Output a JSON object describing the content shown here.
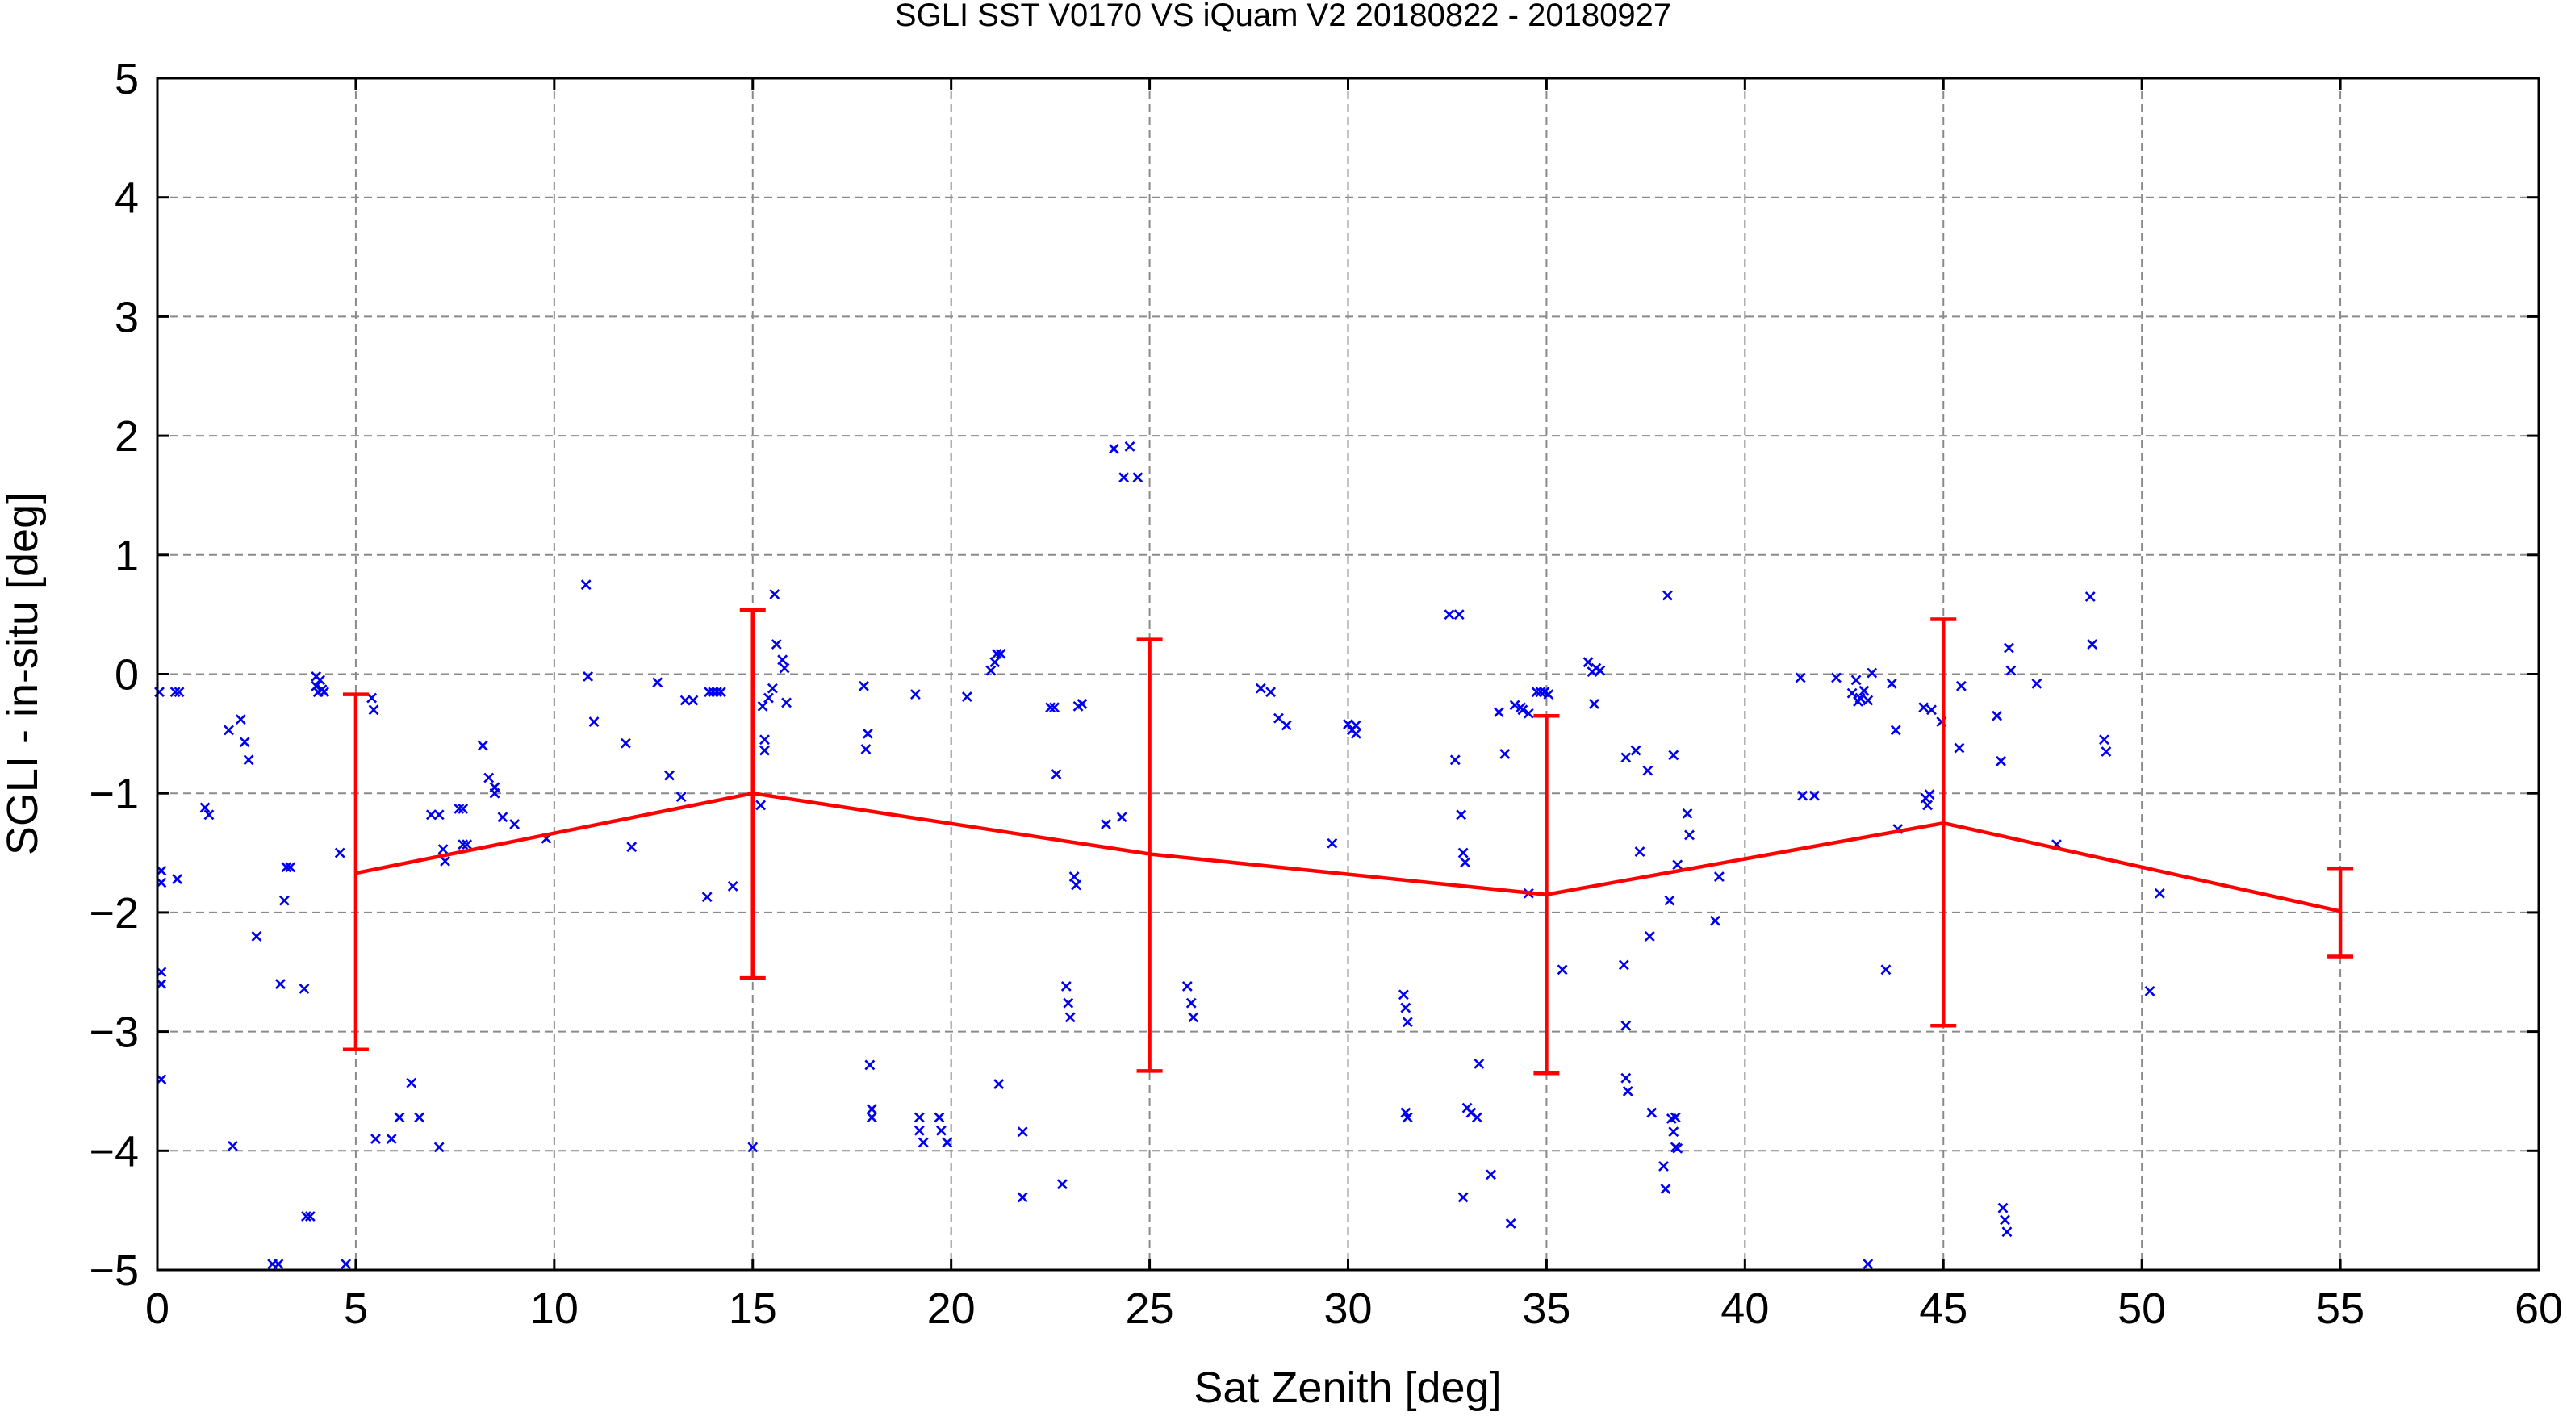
{
  "chart_data": {
    "type": "scatter",
    "title": "SGLI SST V0170 VS iQuam V2 20180822 - 20180927",
    "xlabel": "Sat Zenith [deg]",
    "ylabel": "SGLI - in-situ [deg]",
    "xlim": [
      0,
      60
    ],
    "ylim": [
      -5,
      5
    ],
    "x_ticks": [
      "0",
      "5",
      "10",
      "15",
      "20",
      "25",
      "30",
      "35",
      "40",
      "45",
      "50",
      "55",
      "60"
    ],
    "y_ticks": [
      "5",
      "4",
      "3",
      "2",
      "1",
      "0",
      "-1",
      "-2",
      "-3",
      "-4",
      "-5"
    ],
    "grid": true,
    "colors": {
      "points": "#0000ee",
      "mean": "#ff0000",
      "grid": "#8a8a8a"
    },
    "series": [
      {
        "kind": "points",
        "marker": "x",
        "points": [
          [
            0.05,
            -0.15
          ],
          [
            0.1,
            -1.65
          ],
          [
            0.1,
            -1.75
          ],
          [
            0.1,
            -2.5
          ],
          [
            0.1,
            -2.6
          ],
          [
            0.1,
            -3.4
          ],
          [
            0.45,
            -0.15
          ],
          [
            0.5,
            -1.72
          ],
          [
            0.55,
            -0.15
          ],
          [
            1.2,
            -1.12
          ],
          [
            1.3,
            -1.18
          ],
          [
            1.8,
            -0.47
          ],
          [
            1.9,
            -3.96
          ],
          [
            2.1,
            -0.38
          ],
          [
            2.2,
            -0.57
          ],
          [
            2.3,
            -0.72
          ],
          [
            2.5,
            -2.2
          ],
          [
            2.9,
            -4.95
          ],
          [
            3.05,
            -4.95
          ],
          [
            3.1,
            -2.6
          ],
          [
            3.2,
            -1.9
          ],
          [
            3.25,
            -1.62
          ],
          [
            3.35,
            -1.62
          ],
          [
            3.7,
            -2.64
          ],
          [
            3.75,
            -4.55
          ],
          [
            3.85,
            -4.55
          ],
          [
            4.0,
            -0.02
          ],
          [
            4.0,
            -0.1
          ],
          [
            4.05,
            -0.15
          ],
          [
            4.1,
            -0.05
          ],
          [
            4.15,
            -0.13
          ],
          [
            4.2,
            -0.15
          ],
          [
            4.6,
            -1.5
          ],
          [
            4.75,
            -4.95
          ],
          [
            5.4,
            -0.2
          ],
          [
            5.45,
            -0.3
          ],
          [
            5.5,
            -3.9
          ],
          [
            5.9,
            -3.9
          ],
          [
            6.1,
            -3.72
          ],
          [
            6.4,
            -3.43
          ],
          [
            6.6,
            -3.72
          ],
          [
            6.9,
            -1.18
          ],
          [
            7.1,
            -1.18
          ],
          [
            7.2,
            -1.47
          ],
          [
            7.25,
            -1.57
          ],
          [
            7.1,
            -3.97
          ],
          [
            7.6,
            -1.13
          ],
          [
            7.7,
            -1.13
          ],
          [
            7.7,
            -1.43
          ],
          [
            7.8,
            -1.43
          ],
          [
            8.2,
            -0.6
          ],
          [
            8.35,
            -0.87
          ],
          [
            8.5,
            -1.0
          ],
          [
            8.5,
            -0.95
          ],
          [
            8.7,
            -1.2
          ],
          [
            9.0,
            -1.26
          ],
          [
            9.8,
            -1.38
          ],
          [
            10.8,
            0.75
          ],
          [
            10.85,
            -0.02
          ],
          [
            11.0,
            -0.4
          ],
          [
            11.8,
            -0.58
          ],
          [
            11.95,
            -1.45
          ],
          [
            12.6,
            -0.07
          ],
          [
            12.9,
            -0.85
          ],
          [
            13.2,
            -1.03
          ],
          [
            13.3,
            -0.22
          ],
          [
            13.5,
            -0.22
          ],
          [
            13.85,
            -1.87
          ],
          [
            13.9,
            -0.15
          ],
          [
            14.0,
            -0.15
          ],
          [
            14.1,
            -0.15
          ],
          [
            14.2,
            -0.15
          ],
          [
            14.5,
            -1.78
          ],
          [
            15.0,
            -3.97
          ],
          [
            15.2,
            -1.1
          ],
          [
            15.25,
            -0.27
          ],
          [
            15.3,
            -0.55
          ],
          [
            15.3,
            -0.64
          ],
          [
            15.4,
            -0.2
          ],
          [
            15.5,
            -0.12
          ],
          [
            15.55,
            0.67
          ],
          [
            15.6,
            0.25
          ],
          [
            15.75,
            0.12
          ],
          [
            15.8,
            0.05
          ],
          [
            15.85,
            -0.24
          ],
          [
            17.8,
            -0.1
          ],
          [
            17.85,
            -0.63
          ],
          [
            17.9,
            -0.5
          ],
          [
            17.95,
            -3.28
          ],
          [
            18.0,
            -3.65
          ],
          [
            18.0,
            -3.72
          ],
          [
            19.1,
            -0.17
          ],
          [
            19.2,
            -3.72
          ],
          [
            19.2,
            -3.83
          ],
          [
            19.3,
            -3.93
          ],
          [
            19.7,
            -3.72
          ],
          [
            19.75,
            -3.83
          ],
          [
            19.9,
            -3.93
          ],
          [
            20.4,
            -0.19
          ],
          [
            21.0,
            0.03
          ],
          [
            21.1,
            0.1
          ],
          [
            21.15,
            0.17
          ],
          [
            21.25,
            0.17
          ],
          [
            21.2,
            -3.44
          ],
          [
            21.8,
            -3.84
          ],
          [
            21.8,
            -4.39
          ],
          [
            22.5,
            -0.28
          ],
          [
            22.6,
            -0.28
          ],
          [
            22.65,
            -0.84
          ],
          [
            22.8,
            -4.28
          ],
          [
            22.9,
            -2.62
          ],
          [
            22.95,
            -2.76
          ],
          [
            23.0,
            -2.88
          ],
          [
            23.1,
            -1.7
          ],
          [
            23.15,
            -1.77
          ],
          [
            23.2,
            -0.27
          ],
          [
            23.3,
            -0.25
          ],
          [
            23.9,
            -1.26
          ],
          [
            24.1,
            1.89
          ],
          [
            24.3,
            -1.2
          ],
          [
            24.35,
            1.65
          ],
          [
            24.5,
            1.91
          ],
          [
            24.7,
            1.65
          ],
          [
            25.95,
            -2.62
          ],
          [
            26.05,
            -2.76
          ],
          [
            26.1,
            -2.88
          ],
          [
            27.8,
            -0.12
          ],
          [
            28.05,
            -0.15
          ],
          [
            28.25,
            -0.37
          ],
          [
            28.45,
            -0.43
          ],
          [
            29.6,
            -1.42
          ],
          [
            30.0,
            -0.42
          ],
          [
            30.1,
            -0.47
          ],
          [
            30.2,
            -0.43
          ],
          [
            30.2,
            -0.5
          ],
          [
            31.4,
            -2.69
          ],
          [
            31.45,
            -2.8
          ],
          [
            31.5,
            -2.92
          ],
          [
            31.45,
            -3.68
          ],
          [
            31.5,
            -3.72
          ],
          [
            32.55,
            0.5
          ],
          [
            32.8,
            0.5
          ],
          [
            32.7,
            -0.72
          ],
          [
            32.85,
            -1.18
          ],
          [
            32.9,
            -1.5
          ],
          [
            32.95,
            -1.58
          ],
          [
            32.9,
            -4.39
          ],
          [
            33.0,
            -3.64
          ],
          [
            33.1,
            -3.68
          ],
          [
            33.25,
            -3.72
          ],
          [
            33.3,
            -3.27
          ],
          [
            33.6,
            -4.2
          ],
          [
            33.8,
            -0.32
          ],
          [
            33.95,
            -0.67
          ],
          [
            34.1,
            -4.61
          ],
          [
            34.2,
            -0.26
          ],
          [
            34.35,
            -0.28
          ],
          [
            34.4,
            -0.3
          ],
          [
            34.55,
            -0.33
          ],
          [
            34.55,
            -1.84
          ],
          [
            34.75,
            -0.15
          ],
          [
            34.85,
            -0.15
          ],
          [
            34.95,
            -0.15
          ],
          [
            35.05,
            -0.17
          ],
          [
            35.4,
            -2.48
          ],
          [
            36.05,
            0.1
          ],
          [
            36.15,
            0.02
          ],
          [
            36.2,
            -0.25
          ],
          [
            36.25,
            0.05
          ],
          [
            36.35,
            0.03
          ],
          [
            36.95,
            -2.44
          ],
          [
            37.0,
            -0.7
          ],
          [
            37.0,
            -2.95
          ],
          [
            37.0,
            -3.39
          ],
          [
            37.05,
            -3.5
          ],
          [
            37.25,
            -0.64
          ],
          [
            37.35,
            -1.49
          ],
          [
            37.55,
            -0.81
          ],
          [
            37.6,
            -2.2
          ],
          [
            37.65,
            -3.68
          ],
          [
            37.95,
            -4.13
          ],
          [
            38.0,
            -4.32
          ],
          [
            38.05,
            0.66
          ],
          [
            38.1,
            -1.9
          ],
          [
            38.15,
            -3.73
          ],
          [
            38.2,
            -3.84
          ],
          [
            38.25,
            -3.72
          ],
          [
            38.3,
            -3.98
          ],
          [
            38.2,
            -0.68
          ],
          [
            38.25,
            -3.97
          ],
          [
            38.3,
            -1.6
          ],
          [
            38.55,
            -1.17
          ],
          [
            38.6,
            -1.35
          ],
          [
            39.25,
            -2.07
          ],
          [
            39.35,
            -1.7
          ],
          [
            41.4,
            -0.03
          ],
          [
            41.45,
            -1.02
          ],
          [
            41.75,
            -1.02
          ],
          [
            42.3,
            -0.03
          ],
          [
            42.7,
            -0.16
          ],
          [
            42.8,
            -0.05
          ],
          [
            42.85,
            -0.23
          ],
          [
            42.9,
            -0.2
          ],
          [
            43.0,
            -0.14
          ],
          [
            43.1,
            -0.22
          ],
          [
            43.1,
            -4.95
          ],
          [
            43.2,
            0.01
          ],
          [
            43.55,
            -2.48
          ],
          [
            43.7,
            -0.08
          ],
          [
            43.8,
            -0.47
          ],
          [
            43.85,
            -1.3
          ],
          [
            44.5,
            -0.28
          ],
          [
            44.55,
            -1.04
          ],
          [
            44.6,
            -1.1
          ],
          [
            44.65,
            -1.01
          ],
          [
            44.7,
            -0.3
          ],
          [
            44.95,
            -0.4
          ],
          [
            45.4,
            -0.62
          ],
          [
            45.45,
            -0.1
          ],
          [
            46.35,
            -0.35
          ],
          [
            46.45,
            -0.73
          ],
          [
            46.5,
            -4.48
          ],
          [
            46.55,
            -4.58
          ],
          [
            46.6,
            -4.68
          ],
          [
            46.65,
            0.22
          ],
          [
            46.7,
            0.03
          ],
          [
            47.35,
            -0.08
          ],
          [
            47.85,
            -1.43
          ],
          [
            48.7,
            0.65
          ],
          [
            48.75,
            0.25
          ],
          [
            49.05,
            -0.55
          ],
          [
            49.1,
            -0.65
          ],
          [
            50.2,
            -2.66
          ],
          [
            50.45,
            -1.84
          ]
        ]
      },
      {
        "kind": "mean_with_errorbars",
        "x": [
          5,
          15,
          25,
          35,
          45,
          55
        ],
        "mean": [
          -1.67,
          -1.0,
          -1.51,
          -1.85,
          -1.25,
          -1.99
        ],
        "low": [
          -3.15,
          -2.55,
          -3.33,
          -3.35,
          -2.95,
          -2.37
        ],
        "high": [
          -0.17,
          0.54,
          0.29,
          -0.35,
          0.46,
          -1.63
        ]
      }
    ]
  }
}
